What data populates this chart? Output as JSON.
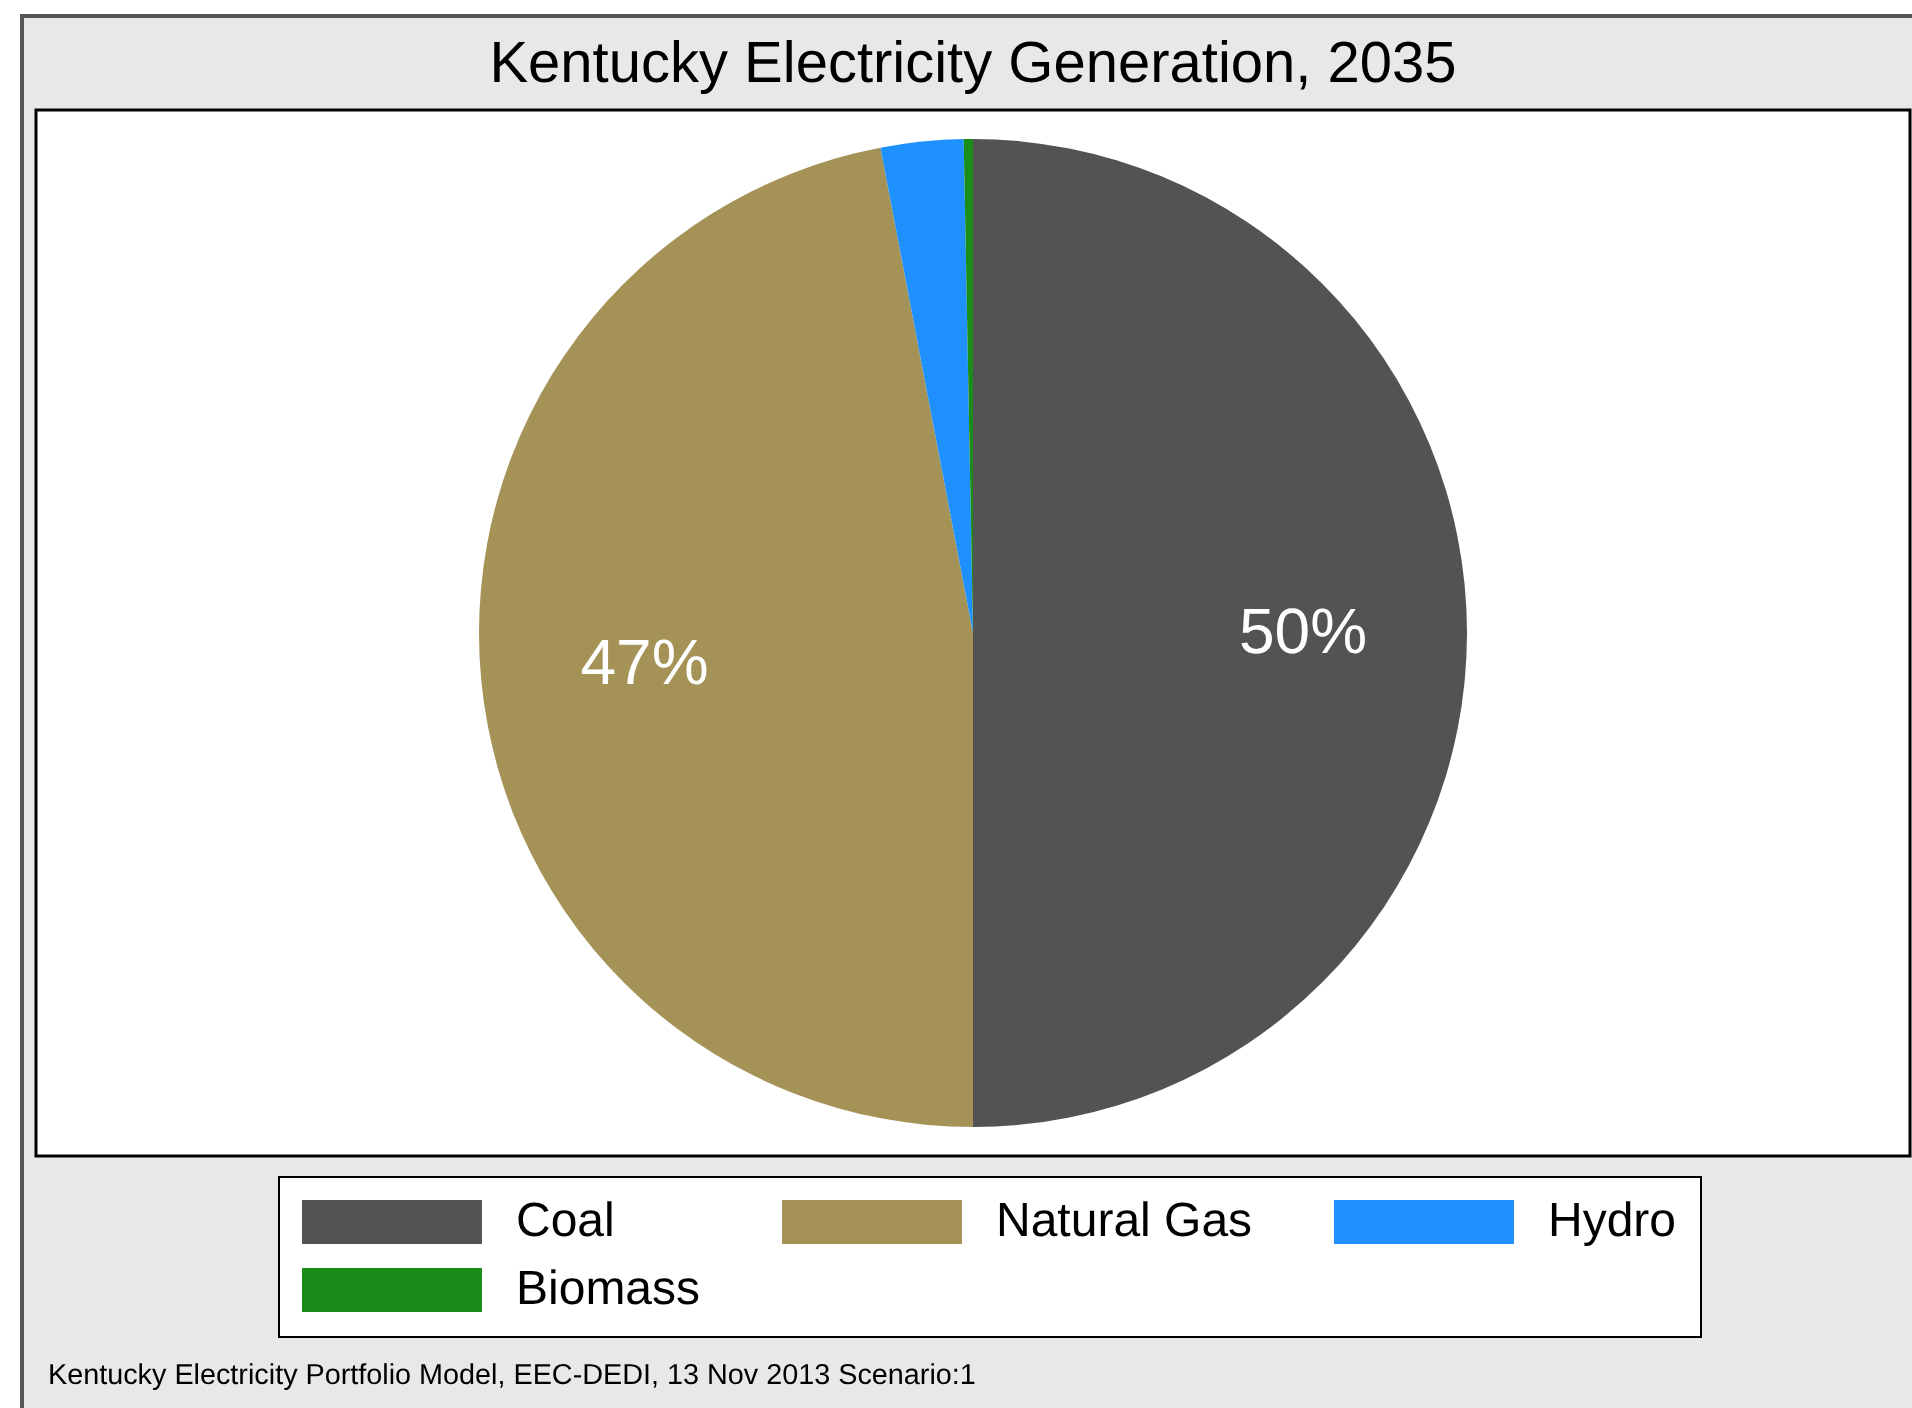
{
  "chart_data": {
    "type": "pie",
    "title": "Kentucky Electricity Generation, 2035",
    "categories": [
      "Coal",
      "Natural Gas",
      "Hydro",
      "Biomass"
    ],
    "values": [
      50,
      47,
      2.7,
      0.3
    ],
    "colors": [
      "#535353",
      "#a59257",
      "#1e90ff",
      "#1a8c1a"
    ],
    "value_labels": [
      "50%",
      "47%",
      null,
      null
    ],
    "legend": "bottom",
    "annotations": [
      "Kentucky Electricity Portfolio Model, EEC-DEDI, 13 Nov 2013 Scenario:1"
    ]
  }
}
